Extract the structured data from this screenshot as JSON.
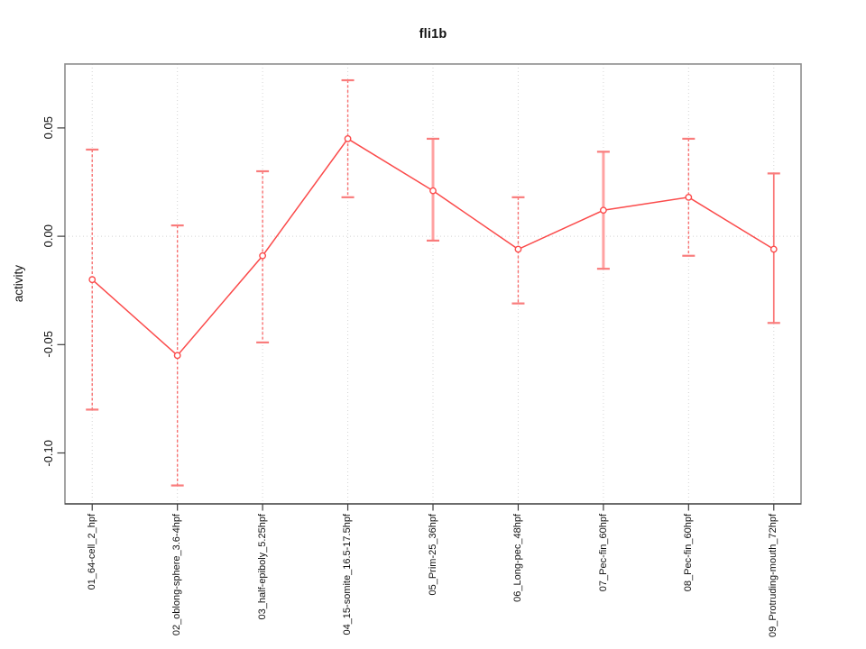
{
  "chart_data": {
    "type": "line",
    "title": "fli1b",
    "xlabel": "",
    "ylabel": "activity",
    "categories": [
      "01_64-cell_2_hpf",
      "02_oblong-sphere_3.6-4hpf",
      "03_half-epiboly_5.25hpf",
      "04_15-somite_16.5-17.5hpf",
      "05_Prim-25_36hpf",
      "06_Long-pec_48hpf",
      "07_Pec-fin_60hpf",
      "08_Pec-fin_60hpf",
      "09_Protruding-mouth_72hpf"
    ],
    "series": [
      {
        "name": "fli1b activity",
        "values": [
          -0.02,
          -0.055,
          -0.009,
          0.045,
          0.021,
          -0.006,
          0.012,
          0.018,
          -0.006
        ],
        "error_low": [
          -0.08,
          -0.115,
          -0.049,
          0.018,
          -0.002,
          -0.031,
          -0.015,
          -0.009,
          -0.04
        ],
        "error_high": [
          0.04,
          0.005,
          0.03,
          0.072,
          0.045,
          0.018,
          0.039,
          0.045,
          0.029
        ],
        "error_bar_styles": [
          "dashed",
          "dashed",
          "dashed",
          "dashed",
          "thick",
          "dashed",
          "thick",
          "dashed",
          "solid"
        ]
      }
    ],
    "marker": "open-circle",
    "ylim": [
      -0.1235,
      0.0795
    ],
    "xlim": [
      0.68,
      9.32
    ],
    "yticks": {
      "values": [
        0.05,
        0.0,
        -0.05,
        -0.1
      ],
      "labels": [
        "0.05",
        "0.00",
        "-0.05",
        "-0.10"
      ]
    },
    "grid": {
      "vertical": "dotted-at-each-category",
      "horizontal": "dotted-at-zero"
    },
    "legend": "none"
  },
  "colors": {
    "background": "#ffffff",
    "series": "#fb4b4b",
    "error_dashed": "#f87070",
    "error_solid": "#fb7575",
    "error_thick": "#ffa2a2",
    "cap": "#f97c7c",
    "grid": "#d4d4d4",
    "box": "#8e8e8e",
    "axis": "#3d3d3d",
    "text": "#111111"
  }
}
